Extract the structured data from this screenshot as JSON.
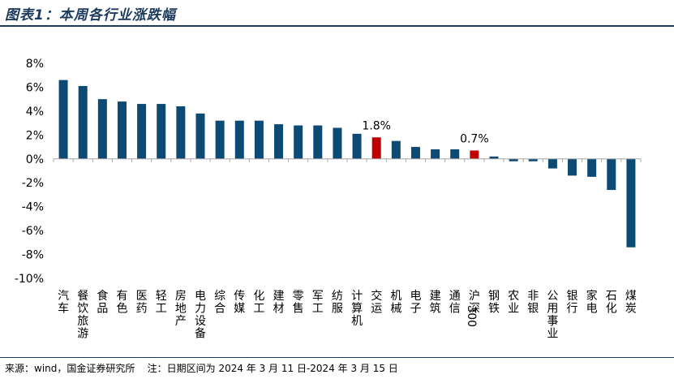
{
  "header": {
    "title": "图表1：本周各行业涨跌幅"
  },
  "footer": {
    "source": "来源：wind，国金证券研究所    注：日期区间为 2024 年 3 月 11 日-2024 年 3 月 15 日"
  },
  "chart_data": {
    "type": "bar",
    "categories": [
      "汽车",
      "餐饮旅游",
      "食品",
      "有色",
      "医药",
      "轻工",
      "房地产",
      "电力设备",
      "综合",
      "传媒",
      "化工",
      "建材",
      "零售",
      "军工",
      "纺服",
      "计算机",
      "交运",
      "机械",
      "电子",
      "建筑",
      "通信",
      "沪深300",
      "钢铁",
      "农业",
      "非银",
      "公用事业",
      "银行",
      "家电",
      "石化",
      "煤炭"
    ],
    "values": [
      6.6,
      6.1,
      5.0,
      4.8,
      4.6,
      4.6,
      4.4,
      3.8,
      3.2,
      3.2,
      3.2,
      2.9,
      2.8,
      2.8,
      2.6,
      2.1,
      1.8,
      1.5,
      1.0,
      0.8,
      0.8,
      0.7,
      0.2,
      -0.2,
      -0.2,
      -0.8,
      -1.4,
      -1.5,
      -2.6,
      -7.4
    ],
    "highlight": [
      "交运",
      "沪深300"
    ],
    "data_labels": [
      {
        "category": "交运",
        "text": "1.8%"
      },
      {
        "category": "沪深300",
        "text": "0.7%"
      }
    ],
    "yticks": [
      "8%",
      "6%",
      "4%",
      "2%",
      "0%",
      "-2%",
      "-4%",
      "-6%",
      "-8%",
      "-10%"
    ],
    "ylim": [
      -10,
      8
    ],
    "colors": {
      "bar": "#0d4a73",
      "highlight": "#c00000",
      "axis": "#a6a6a6"
    },
    "grid": false,
    "xlabel": "",
    "ylabel": ""
  }
}
